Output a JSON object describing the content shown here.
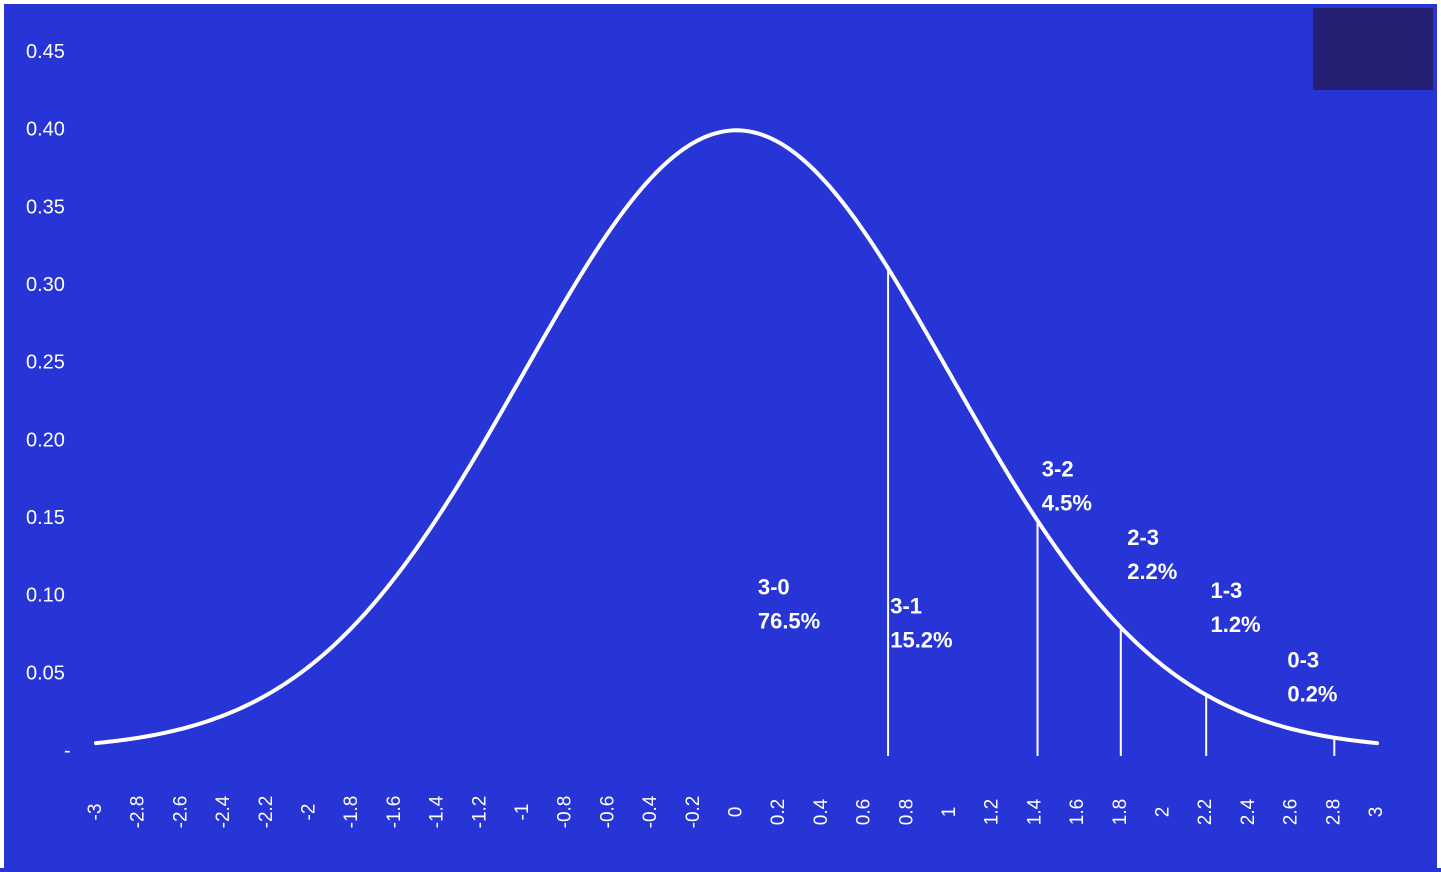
{
  "chart_data": {
    "type": "line",
    "title": "",
    "xlabel": "",
    "ylabel": "",
    "xlim": [
      -3,
      3
    ],
    "ylim": [
      0,
      0.45
    ],
    "x_ticks": [
      "-3",
      "-2.8",
      "-2.6",
      "-2.4",
      "-2.2",
      "-2",
      "-1.8",
      "-1.6",
      "-1.4",
      "-1.2",
      "-1",
      "-0.8",
      "-0.6",
      "-0.4",
      "-0.2",
      "0",
      "0.2",
      "0.4",
      "0.6",
      "0.8",
      "1",
      "1.2",
      "1.4",
      "1.6",
      "1.8",
      "2",
      "2.2",
      "2.4",
      "2.6",
      "2.8",
      "3"
    ],
    "y_ticks": [
      {
        "value": 0,
        "label": "-"
      },
      {
        "value": 0.05,
        "label": "0.05"
      },
      {
        "value": 0.1,
        "label": "0.10"
      },
      {
        "value": 0.15,
        "label": "0.15"
      },
      {
        "value": 0.2,
        "label": "0.20"
      },
      {
        "value": 0.25,
        "label": "0.25"
      },
      {
        "value": 0.3,
        "label": "0.30"
      },
      {
        "value": 0.35,
        "label": "0.35"
      },
      {
        "value": 0.4,
        "label": "0.40"
      },
      {
        "value": 0.45,
        "label": "0.45"
      }
    ],
    "series": [
      {
        "x": [
          -3,
          -2.8,
          -2.6,
          -2.4,
          -2.2,
          -2,
          -1.8,
          -1.6,
          -1.4,
          -1.2,
          -1,
          -0.8,
          -0.6,
          -0.4,
          -0.2,
          0,
          0.2,
          0.4,
          0.6,
          0.8,
          1,
          1.2,
          1.4,
          1.6,
          1.8,
          2,
          2.2,
          2.4,
          2.6,
          2.8,
          3
        ],
        "y": [
          0.0044,
          0.0079,
          0.0136,
          0.0224,
          0.0355,
          0.054,
          0.079,
          0.1109,
          0.1497,
          0.1942,
          0.242,
          0.2897,
          0.3332,
          0.3683,
          0.391,
          0.3989,
          0.391,
          0.3683,
          0.3332,
          0.2897,
          0.242,
          0.1942,
          0.1497,
          0.1109,
          0.079,
          0.054,
          0.0355,
          0.0224,
          0.0136,
          0.0079,
          0.0044
        ]
      }
    ],
    "dividers": [
      0.71,
      1.41,
      1.8,
      2.2,
      2.8
    ],
    "annotations": [
      {
        "line1": "3-0",
        "line2": "76.5%",
        "x": 0.1,
        "y": 0.1
      },
      {
        "line1": "3-1",
        "line2": "15.2%",
        "x": 0.72,
        "y": 0.088
      },
      {
        "line1": "3-2",
        "line2": "4.5%",
        "x": 1.43,
        "y": 0.176
      },
      {
        "line1": "2-3",
        "line2": "2.2%",
        "x": 1.83,
        "y": 0.132
      },
      {
        "line1": "1-3",
        "line2": "1.2%",
        "x": 2.22,
        "y": 0.098
      },
      {
        "line1": "0-3",
        "line2": "0.2%",
        "x": 2.58,
        "y": 0.053
      }
    ]
  }
}
